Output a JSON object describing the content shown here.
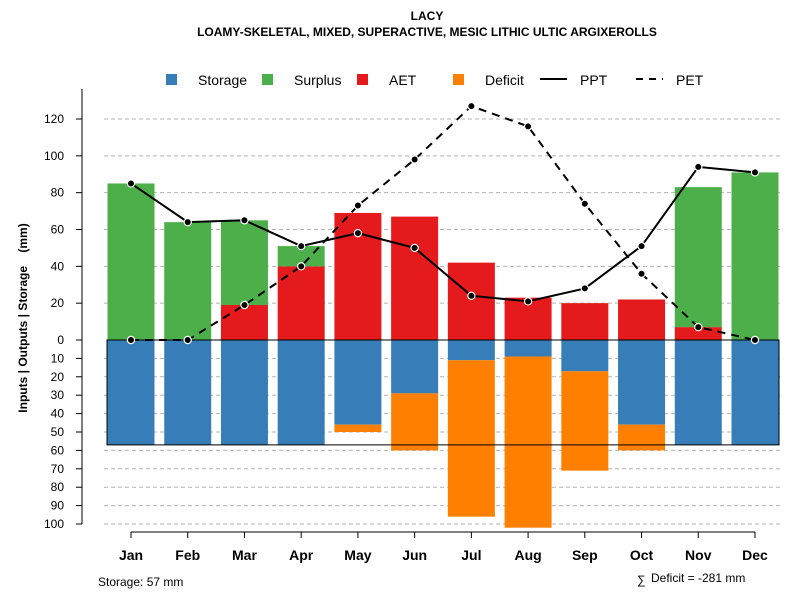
{
  "chart_data": {
    "type": "bar",
    "title": "LACY",
    "subtitle": "LOAMY-SKELETAL, MIXED, SUPERACTIVE, MESIC LITHIC ULTIC ARGIXEROLLS",
    "ylabel": "Inputs | Outputs | Storage    (mm)",
    "categories": [
      "Jan",
      "Feb",
      "Mar",
      "Apr",
      "May",
      "Jun",
      "Jul",
      "Aug",
      "Sep",
      "Oct",
      "Nov",
      "Dec"
    ],
    "upper_ylim": [
      0,
      130
    ],
    "upper_ticks": [
      0,
      20,
      40,
      60,
      80,
      100,
      120
    ],
    "lower_ylim": [
      0,
      100
    ],
    "lower_ticks": [
      0,
      10,
      20,
      30,
      40,
      50,
      60,
      70,
      80,
      90,
      100
    ],
    "series": [
      {
        "name": "AET",
        "color": "#e41a1c",
        "values": [
          0,
          0,
          19,
          40,
          69,
          67,
          42,
          23,
          20,
          22,
          7,
          0
        ]
      },
      {
        "name": "Surplus",
        "color": "#4daf4a",
        "values": [
          85,
          64,
          46,
          11,
          0,
          0,
          0,
          0,
          0,
          0,
          76,
          91
        ]
      },
      {
        "name": "Storage",
        "color": "#377eb8",
        "values": [
          57,
          57,
          57,
          57,
          46,
          29,
          11,
          9,
          17,
          46,
          57,
          57
        ]
      },
      {
        "name": "Deficit",
        "color": "#ff7f00",
        "values": [
          0,
          0,
          0,
          0,
          4,
          31,
          85,
          93,
          54,
          14,
          0,
          0
        ]
      },
      {
        "name": "PPT",
        "color": "#000000",
        "line": "solid",
        "values": [
          85,
          64,
          65,
          51,
          58,
          50,
          24,
          21,
          28,
          51,
          94,
          91
        ]
      },
      {
        "name": "PET",
        "color": "#000000",
        "line": "dashed",
        "values": [
          0,
          0,
          19,
          40,
          73,
          98,
          127,
          116,
          74,
          36,
          7,
          0
        ]
      }
    ],
    "legend": [
      "Storage",
      "Surplus",
      "AET",
      "Deficit",
      "PPT",
      "PET"
    ],
    "legend_placement": "top",
    "storage_capacity": 57,
    "grid": true
  },
  "footer": {
    "storage_label": "Storage: 57 mm",
    "deficit_sum_label": "Deficit = -281 mm"
  }
}
